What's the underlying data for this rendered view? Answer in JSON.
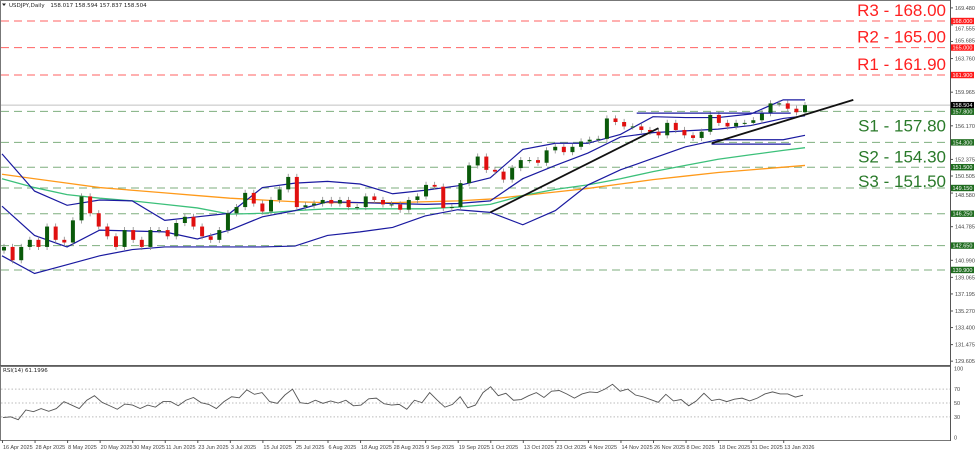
{
  "header": {
    "symbol_timeframe": "USDJPY,Daily",
    "ohlc": "158.017 158.594 157.837 158.504"
  },
  "rsi_header": "RSI(14) 61.1996",
  "colors": {
    "resistance": "#ff2020",
    "support": "#2a7a2a",
    "bull": "#0a5a0a",
    "bear": "#e01010",
    "bollinger": "#1a1aa0",
    "ma_long": "#ff9a1a",
    "ma_mid": "#3cc07a",
    "trendline": "#111111",
    "current": "#000000"
  },
  "chart_data": [
    {
      "type": "candlestick",
      "title": "",
      "ylim": [
        129.605,
        169.48
      ],
      "y_ticks": [
        "169.480",
        "167.555",
        "165.685",
        "163.760",
        "159.965",
        "156.170",
        "152.375",
        "150.505",
        "148.580",
        "144.785",
        "140.990",
        "139.065",
        "137.195",
        "135.270",
        "133.400",
        "131.475",
        "129.605"
      ],
      "x_ticks": [
        "16 Apr 2025",
        "28 Apr 2025",
        "8 May 2025",
        "20 May 2025",
        "30 May 2025",
        "11 Jun 2025",
        "23 Jun 2025",
        "3 Jul 2025",
        "15 Jul 2025",
        "25 Jul 2025",
        "6 Aug 2025",
        "18 Aug 2025",
        "28 Aug 2025",
        "9 Sep 2025",
        "19 Sep 2025",
        "1 Oct 2025",
        "13 Oct 2025",
        "23 Oct 2025",
        "4 Nov 2025",
        "14 Nov 2025",
        "26 Nov 2025",
        "8 Dec 2025",
        "18 Dec 2025",
        "31 Dec 2025",
        "13 Jan 2026"
      ],
      "last_bar_date": "20 Jan 2026",
      "current_price": {
        "value": 158.504,
        "label": "158.504"
      },
      "closes": [
        142.5,
        141.0,
        142.5,
        143.3,
        142.5,
        144.8,
        143.3,
        143.0,
        145.5,
        148.2,
        146.3,
        144.8,
        143.7,
        142.5,
        144.4,
        143.3,
        142.5,
        144.4,
        144.4,
        143.7,
        145.2,
        145.9,
        144.8,
        143.7,
        143.3,
        144.4,
        146.3,
        147.0,
        148.6,
        147.4,
        146.5,
        147.8,
        149.0,
        150.4,
        147.0,
        147.2,
        147.4,
        147.8,
        147.4,
        147.8,
        147.0,
        147.0,
        148.2,
        147.8,
        147.3,
        147.3,
        146.7,
        147.8,
        148.2,
        149.5,
        149.3,
        146.9,
        147.0,
        149.7,
        151.7,
        152.7,
        151.2,
        151.0,
        150.1,
        151.4,
        152.3,
        152.3,
        152.0,
        153.4,
        153.8,
        153.2,
        153.8,
        154.4,
        154.6,
        154.7,
        157.0,
        156.6,
        156.1,
        156.1,
        155.7,
        155.5,
        155.1,
        156.5,
        155.7,
        155.1,
        154.8,
        155.5,
        157.4,
        156.5,
        156.1,
        156.5,
        156.5,
        156.8,
        157.6,
        158.7,
        158.7,
        158.1,
        157.7,
        158.504
      ],
      "indicators_at_ticks_and_last_bar": {
        "bollinger_upper": [
          153.0,
          148.8,
          147.2,
          147.8,
          147.7,
          145.5,
          145.9,
          146.3,
          149.2,
          149.7,
          149.9,
          149.6,
          148.5,
          148.9,
          149.4,
          150.3,
          153.5,
          154.2,
          154.2,
          155.2,
          157.2,
          157.1,
          157.1,
          157.5,
          159.1,
          159.1
        ],
        "bollinger_middle": [
          147.1,
          143.8,
          142.5,
          144.4,
          144.3,
          144.2,
          143.4,
          144.4,
          145.9,
          146.6,
          147.6,
          147.5,
          147.4,
          147.3,
          147.4,
          147.7,
          150.2,
          151.7,
          153.1,
          154.9,
          155.4,
          155.6,
          155.8,
          156.2,
          157.0,
          157.3
        ],
        "bollinger_lower": [
          141.5,
          139.5,
          140.5,
          141.5,
          142.2,
          142.5,
          142.5,
          142.5,
          142.5,
          142.6,
          143.8,
          144.2,
          144.7,
          146.0,
          146.7,
          146.4,
          145.0,
          146.6,
          149.5,
          151.2,
          152.5,
          153.8,
          154.6,
          154.6,
          154.6,
          155.1
        ],
        "ma_long": [
          150.7,
          150.2,
          149.7,
          149.2,
          148.9,
          148.6,
          148.3,
          148.0,
          147.8,
          147.6,
          147.5,
          147.5,
          147.5,
          147.6,
          147.7,
          147.9,
          148.3,
          148.7,
          149.1,
          149.6,
          150.1,
          150.5,
          150.9,
          151.2,
          151.5,
          151.7
        ],
        "ma_mid": [
          150.2,
          149.2,
          148.4,
          148.0,
          147.7,
          147.3,
          146.9,
          146.2,
          146.3,
          146.6,
          146.8,
          146.8,
          146.8,
          146.8,
          147.0,
          147.3,
          148.3,
          149.0,
          149.5,
          150.2,
          151.0,
          151.7,
          152.4,
          152.9,
          153.4,
          153.7
        ]
      },
      "trendlines": [
        {
          "from": [
            "1 Oct 2025",
            146.4
          ],
          "to": [
            "28 Nov 2025",
            155.9
          ]
        },
        {
          "from": [
            "16 Dec 2025",
            154.2
          ],
          "to": [
            "10 Feb 2026",
            159.1
          ]
        }
      ],
      "channel_lines": [
        {
          "from": "20 Nov 2025",
          "to": "16 Jan 2026",
          "price": 157.6
        },
        {
          "from": "16 Dec 2025",
          "to": "16 Jan 2026",
          "price": 154.1
        }
      ],
      "levels": [
        {
          "text": "R3 - 168.00",
          "price": 168.0,
          "axis_label": "168.000",
          "kind": "resistance"
        },
        {
          "text": "R2 - 165.00",
          "price": 165.0,
          "axis_label": "165.000",
          "kind": "resistance"
        },
        {
          "text": "R1 - 161.90",
          "price": 161.9,
          "axis_label": "161.900",
          "kind": "resistance"
        },
        {
          "text": "S1 - 157.80",
          "price": 157.8,
          "axis_label": "157.800",
          "kind": "support"
        },
        {
          "text": "S2 - 154.30",
          "price": 154.3,
          "axis_label": "154.300",
          "kind": "support"
        },
        {
          "text": "S3 - 151.50",
          "price": 151.5,
          "axis_label": "151.500",
          "kind": "support"
        },
        {
          "text": "",
          "price": 149.15,
          "axis_label": "149.150",
          "kind": "support"
        },
        {
          "text": "",
          "price": 146.25,
          "axis_label": "146.250",
          "kind": "support"
        },
        {
          "text": "",
          "price": 142.65,
          "axis_label": "142.650",
          "kind": "support"
        },
        {
          "text": "",
          "price": 139.9,
          "axis_label": "139.900",
          "kind": "support"
        }
      ]
    },
    {
      "type": "line",
      "title": "RSI(14) 61.1996",
      "ylim": [
        0,
        100
      ],
      "y_ticks": [
        "100",
        "70",
        "50",
        "30",
        "0"
      ],
      "reference_lines": [
        70,
        50,
        30
      ],
      "values": [
        29,
        30,
        26,
        40,
        37.5,
        42,
        38,
        42,
        52,
        47,
        42,
        54,
        60.5,
        51,
        46,
        41,
        48.5,
        47,
        42,
        47,
        44,
        52,
        52,
        46,
        54,
        58,
        50.5,
        48,
        42,
        52,
        59,
        57.5,
        69,
        62.5,
        65,
        52,
        49.5,
        61.5,
        70,
        50.5,
        49,
        54,
        49.5,
        53,
        50,
        54,
        46,
        47,
        56,
        57,
        49,
        47,
        48,
        41,
        54,
        50.5,
        65,
        54,
        44,
        48,
        59,
        43,
        47,
        65,
        73.5,
        60.5,
        64,
        54,
        55,
        60.5,
        65,
        58,
        67,
        68,
        63,
        57,
        63,
        66,
        65,
        70,
        77,
        67,
        70,
        61.5,
        59,
        55,
        51,
        62.5,
        53,
        55,
        46,
        53,
        64,
        53.5,
        55.5,
        52,
        55.5,
        57,
        53,
        57,
        63,
        66,
        63,
        63,
        58.5,
        61.2
      ]
    }
  ]
}
